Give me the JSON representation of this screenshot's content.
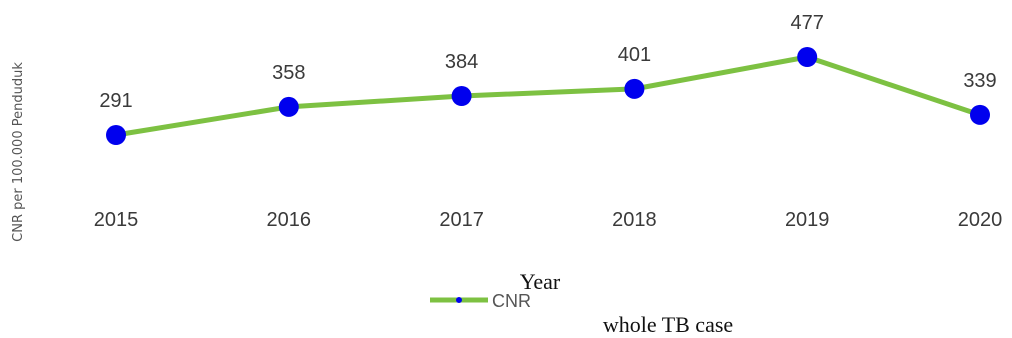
{
  "chart_data": {
    "type": "line",
    "categories": [
      "2015",
      "2016",
      "2017",
      "2018",
      "2019",
      "2020"
    ],
    "series": [
      {
        "name": "CNR",
        "values": [
          291,
          358,
          384,
          401,
          477,
          339
        ]
      }
    ],
    "xlabel": "Year",
    "ylabel": "CNR per 100.000 Penduduk",
    "caption": "whole TB case",
    "line_color": "#7dc142",
    "marker_color": "#0000ee",
    "grid": false,
    "legend": "bottom"
  }
}
